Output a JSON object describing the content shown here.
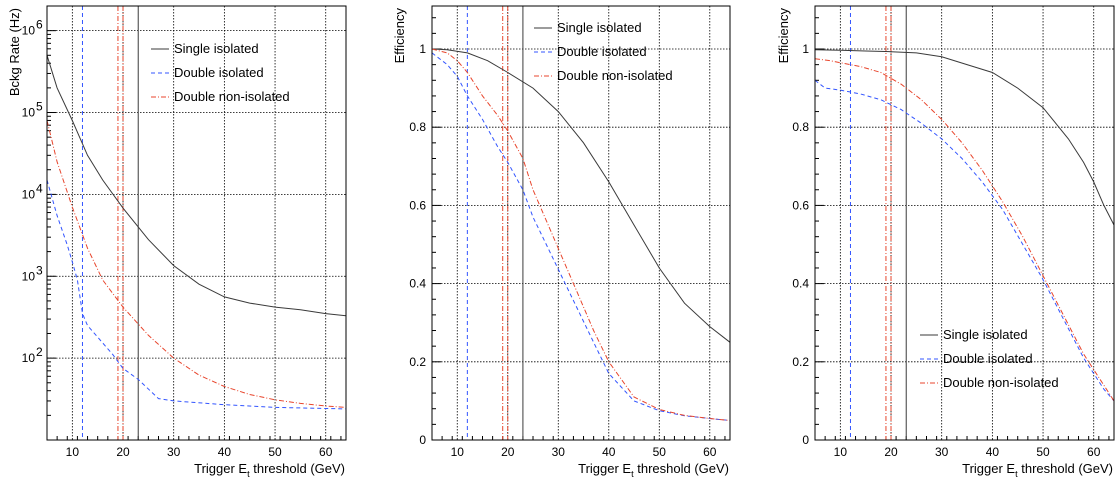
{
  "colors": {
    "single": "#3a3a3a",
    "double": "#3355ff",
    "double_non": "#e8452c",
    "grid": "#000000",
    "frame": "#000000"
  },
  "chart_data": [
    {
      "type": "line",
      "ylabel": "Bckg Rate (Hz)",
      "xlabel_parts": [
        "Trigger E",
        "t",
        " threshold (GeV)"
      ],
      "xlim": [
        5,
        64
      ],
      "ylim": [
        10,
        2000000
      ],
      "yscale": "log",
      "grid": true,
      "legend_position": "top-right",
      "x_ticks": [
        10,
        20,
        30,
        40,
        50,
        60
      ],
      "x_tick_labels": [
        "10",
        "20",
        "30",
        "40",
        "50",
        "60"
      ],
      "y_ticks": [
        100,
        1000,
        10000,
        100000,
        1000000
      ],
      "y_tick_labels": [
        {
          "base": "10",
          "exp": "2"
        },
        {
          "base": "10",
          "exp": "3"
        },
        {
          "base": "10",
          "exp": "4"
        },
        {
          "base": "10",
          "exp": "5"
        },
        {
          "base": "10",
          "exp": "6"
        }
      ],
      "vlines": [
        {
          "x": 12,
          "series": "double"
        },
        {
          "x": 19,
          "series": "double_non"
        },
        {
          "x": 20,
          "series": "double_non"
        },
        {
          "x": 23,
          "series": "single"
        }
      ],
      "series": [
        {
          "key": "single",
          "name": "Single isolated",
          "dash": "solid",
          "x": [
            5,
            7,
            10,
            13,
            16,
            20,
            25,
            30,
            35,
            40,
            45,
            50,
            55,
            60,
            64
          ],
          "y": [
            500000,
            200000,
            80000,
            30000,
            15000,
            6800,
            2800,
            1350,
            800,
            560,
            470,
            420,
            390,
            350,
            330
          ]
        },
        {
          "key": "double",
          "name": "Double isolated",
          "dash": "dashed",
          "x": [
            5,
            7,
            9,
            10,
            11,
            12,
            13,
            15,
            18,
            20,
            23,
            27,
            30,
            40,
            50,
            64
          ],
          "y": [
            15000,
            5500,
            2400,
            1500,
            900,
            350,
            250,
            180,
            110,
            75,
            55,
            32,
            30,
            27,
            25,
            24
          ]
        },
        {
          "key": "double_non",
          "name": "Double non-isolated",
          "dash": "dashdot",
          "x": [
            5,
            7,
            10,
            13,
            16,
            20,
            25,
            30,
            35,
            40,
            45,
            50,
            55,
            60,
            64
          ],
          "y": [
            80000,
            25000,
            7000,
            2200,
            900,
            420,
            190,
            100,
            62,
            45,
            36,
            31,
            28,
            26,
            25
          ]
        }
      ]
    },
    {
      "type": "line",
      "ylabel": "Efficiency",
      "xlabel_parts": [
        "Trigger E",
        "t",
        " threshold (GeV)"
      ],
      "xlim": [
        5,
        64
      ],
      "ylim": [
        0,
        1.11
      ],
      "yscale": "linear",
      "grid": true,
      "legend_position": "top-right",
      "x_ticks": [
        10,
        20,
        30,
        40,
        50,
        60
      ],
      "x_tick_labels": [
        "10",
        "20",
        "30",
        "40",
        "50",
        "60"
      ],
      "y_ticks": [
        0,
        0.2,
        0.4,
        0.6,
        0.8,
        1
      ],
      "y_tick_labels": [
        "0",
        "0.2",
        "0.4",
        "0.6",
        "0.8",
        "1"
      ],
      "vlines": [
        {
          "x": 12,
          "series": "double"
        },
        {
          "x": 19,
          "series": "double_non"
        },
        {
          "x": 20,
          "series": "double_non"
        },
        {
          "x": 23,
          "series": "single"
        }
      ],
      "series": [
        {
          "key": "single",
          "name": "Single isolated",
          "dash": "solid",
          "x": [
            5,
            8,
            12,
            16,
            20,
            25,
            30,
            35,
            40,
            45,
            50,
            55,
            60,
            64
          ],
          "y": [
            1.0,
            0.998,
            0.99,
            0.97,
            0.94,
            0.9,
            0.84,
            0.76,
            0.66,
            0.55,
            0.44,
            0.35,
            0.29,
            0.25
          ]
        },
        {
          "key": "double",
          "name": "Double isolated",
          "dash": "dashed",
          "x": [
            5,
            8,
            10,
            12,
            15,
            18,
            20,
            23,
            25,
            28,
            31,
            34,
            37,
            40,
            45,
            50,
            55,
            60,
            64
          ],
          "y": [
            0.99,
            0.96,
            0.93,
            0.88,
            0.82,
            0.75,
            0.71,
            0.64,
            0.57,
            0.49,
            0.41,
            0.33,
            0.25,
            0.17,
            0.1,
            0.075,
            0.062,
            0.055,
            0.05
          ]
        },
        {
          "key": "double_non",
          "name": "Double non-isolated",
          "dash": "dashdot",
          "x": [
            5,
            8,
            10,
            12,
            15,
            18,
            20,
            23,
            25,
            28,
            31,
            34,
            37,
            40,
            45,
            50,
            55,
            60,
            64
          ],
          "y": [
            1.0,
            0.99,
            0.97,
            0.94,
            0.88,
            0.83,
            0.79,
            0.72,
            0.64,
            0.55,
            0.46,
            0.37,
            0.28,
            0.2,
            0.11,
            0.078,
            0.063,
            0.055,
            0.05
          ]
        }
      ]
    },
    {
      "type": "line",
      "ylabel": "Efficiency",
      "xlabel_parts": [
        "Trigger E",
        "t",
        " threshold (GeV)"
      ],
      "xlim": [
        5,
        64
      ],
      "ylim": [
        0,
        1.11
      ],
      "yscale": "linear",
      "grid": true,
      "legend_position": "bottom-right",
      "x_ticks": [
        10,
        20,
        30,
        40,
        50,
        60
      ],
      "x_tick_labels": [
        "10",
        "20",
        "30",
        "40",
        "50",
        "60"
      ],
      "y_ticks": [
        0,
        0.2,
        0.4,
        0.6,
        0.8,
        1
      ],
      "y_tick_labels": [
        "0",
        "0.2",
        "0.4",
        "0.6",
        "0.8",
        "1"
      ],
      "vlines": [
        {
          "x": 12,
          "series": "double"
        },
        {
          "x": 19,
          "series": "double_non"
        },
        {
          "x": 20,
          "series": "double_non"
        },
        {
          "x": 23,
          "series": "single"
        }
      ],
      "series": [
        {
          "key": "single",
          "name": "Single isolated",
          "dash": "solid",
          "x": [
            5,
            10,
            15,
            20,
            25,
            30,
            35,
            40,
            45,
            50,
            55,
            58,
            60,
            62,
            64
          ],
          "y": [
            0.998,
            0.997,
            0.995,
            0.993,
            0.99,
            0.98,
            0.96,
            0.94,
            0.9,
            0.85,
            0.77,
            0.71,
            0.66,
            0.6,
            0.55
          ]
        },
        {
          "key": "double",
          "name": "Double isolated",
          "dash": "dashed",
          "x": [
            5,
            7,
            10,
            14,
            18,
            22,
            26,
            30,
            34,
            38,
            42,
            46,
            50,
            54,
            58,
            62,
            64
          ],
          "y": [
            0.92,
            0.9,
            0.895,
            0.885,
            0.87,
            0.845,
            0.81,
            0.77,
            0.72,
            0.66,
            0.59,
            0.5,
            0.41,
            0.31,
            0.21,
            0.13,
            0.1
          ]
        },
        {
          "key": "double_non",
          "name": "Double non-isolated",
          "dash": "dashdot",
          "x": [
            5,
            8,
            10,
            14,
            18,
            22,
            26,
            30,
            34,
            38,
            42,
            46,
            50,
            54,
            58,
            62,
            64
          ],
          "y": [
            0.975,
            0.97,
            0.965,
            0.955,
            0.94,
            0.91,
            0.87,
            0.82,
            0.76,
            0.69,
            0.61,
            0.52,
            0.42,
            0.32,
            0.22,
            0.14,
            0.1
          ]
        }
      ]
    }
  ]
}
